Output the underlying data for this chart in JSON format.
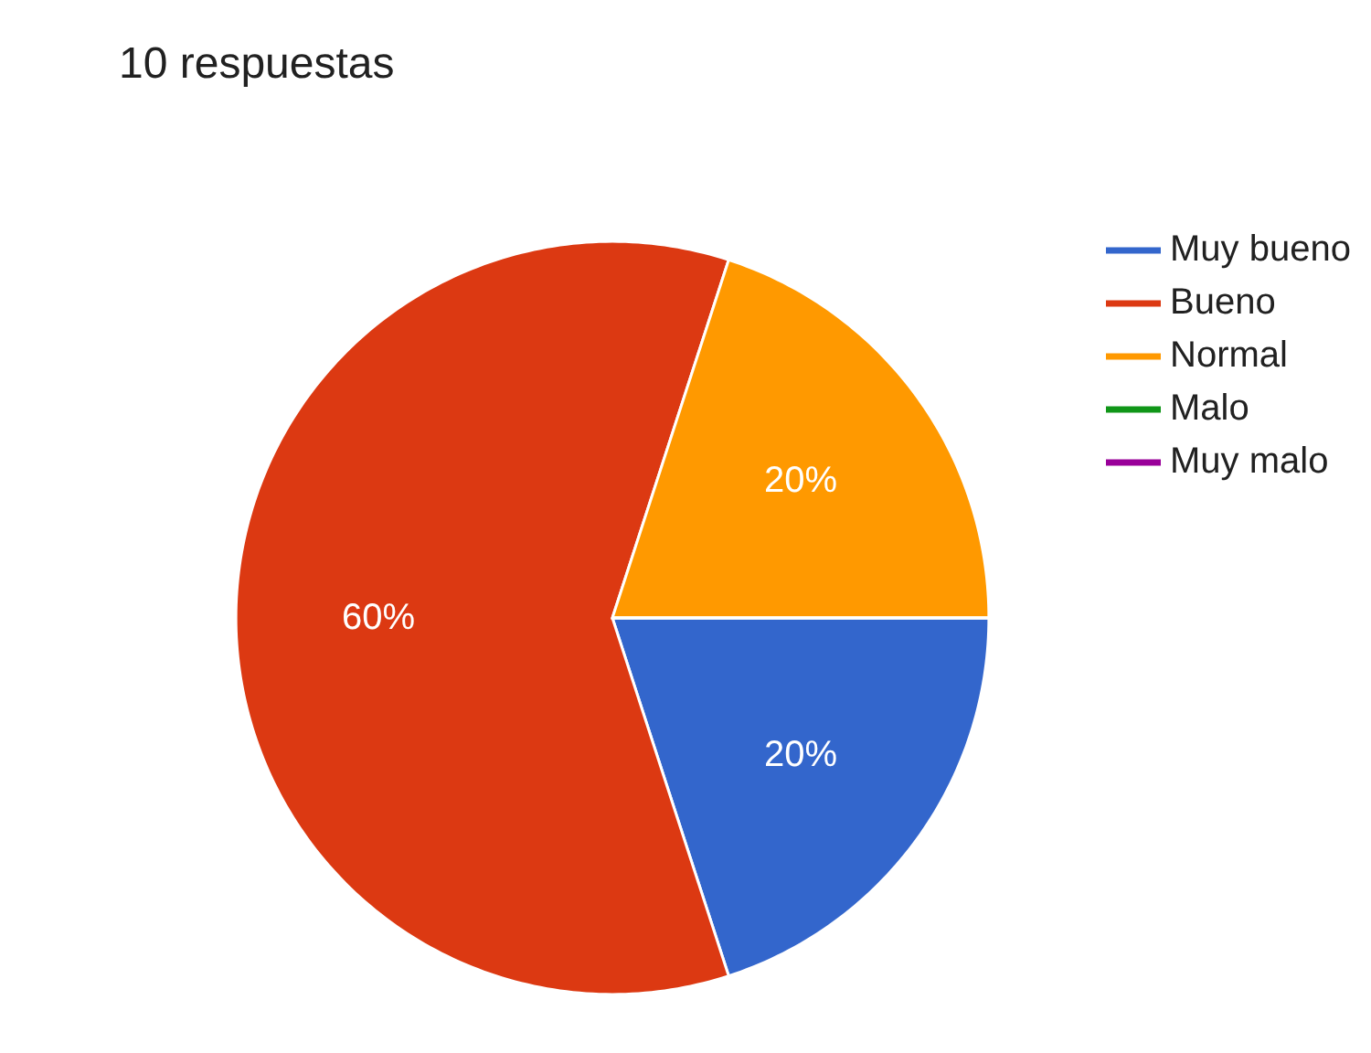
{
  "chart_data": {
    "type": "pie",
    "title": "10 respuestas",
    "categories": [
      "Muy bueno",
      "Bueno",
      "Normal",
      "Malo",
      "Muy malo"
    ],
    "values": [
      20,
      60,
      20,
      0,
      0
    ],
    "colors": [
      "#3366cc",
      "#dc3912",
      "#ff9900",
      "#109618",
      "#990099"
    ],
    "value_labels": [
      "20%",
      "60%",
      "20%",
      null,
      null
    ],
    "legend": "right"
  }
}
